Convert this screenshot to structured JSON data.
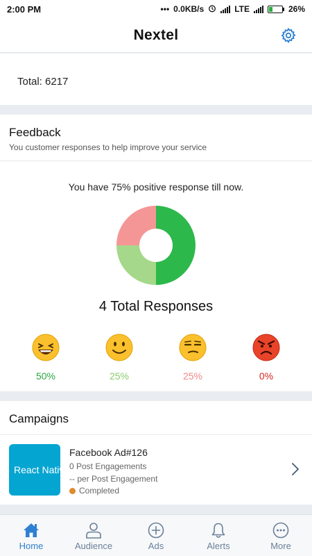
{
  "status_bar": {
    "time": "2:00 PM",
    "dots": "•••",
    "speed": "0.0KB/s",
    "network": "LTE",
    "battery": "26%"
  },
  "header": {
    "title": "Nextel",
    "settings_icon": "gear-icon",
    "accent_color": "#2f80d0"
  },
  "summary": {
    "total_label": "Total: 6217"
  },
  "feedback": {
    "title": "Feedback",
    "subtitle": "You customer responses to help improve your service",
    "positive_text": "You have 75% positive response till now.",
    "total_responses": "4 Total Responses",
    "chart_data": {
      "type": "pie",
      "donut": true,
      "slices": [
        {
          "value": 50,
          "color": "#2db84b"
        },
        {
          "value": 25,
          "color": "#a5d88a"
        },
        {
          "value": 25,
          "color": "#f59696"
        }
      ]
    },
    "ratings": [
      {
        "icon": "laughing-face-icon",
        "percent": "50%",
        "color": "#2aa842"
      },
      {
        "icon": "smiling-face-icon",
        "percent": "25%",
        "color": "#8acb6c"
      },
      {
        "icon": "unamused-face-icon",
        "percent": "25%",
        "color": "#f08a8a"
      },
      {
        "icon": "angry-face-icon",
        "percent": "0%",
        "color": "#d9241f"
      }
    ]
  },
  "campaigns": {
    "title": "Campaigns",
    "items": [
      {
        "thumbnail_text": "React Native",
        "name": "Facebook Ad#126",
        "engagements": "0 Post Engagements",
        "per_engagement": "-- per Post Engagement",
        "status": "Completed",
        "status_color": "#e08a2e"
      }
    ]
  },
  "tabbar": {
    "tabs": [
      {
        "label": "Home",
        "icon": "home-icon",
        "active": true
      },
      {
        "label": "Audience",
        "icon": "person-icon",
        "active": false
      },
      {
        "label": "Ads",
        "icon": "plus-circle-icon",
        "active": false
      },
      {
        "label": "Alerts",
        "icon": "bell-icon",
        "active": false
      },
      {
        "label": "More",
        "icon": "more-circle-icon",
        "active": false
      }
    ]
  }
}
